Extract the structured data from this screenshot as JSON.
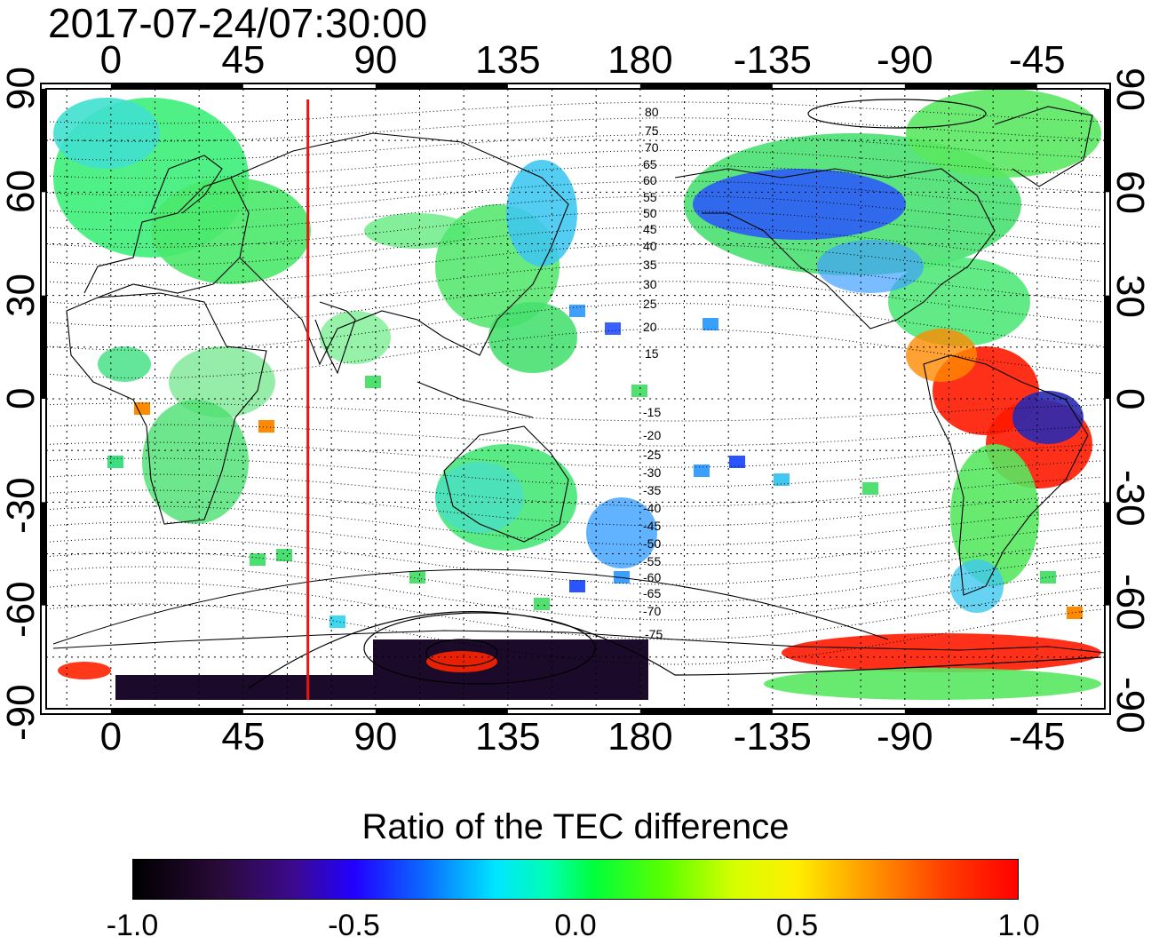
{
  "title": "2017-07-24/07:30:00",
  "x_ticks": [
    "0",
    "45",
    "90",
    "135",
    "180",
    "-135",
    "-90",
    "-45"
  ],
  "y_ticks_left": [
    "90",
    "60",
    "30",
    "0",
    "-30",
    "-60",
    "-90"
  ],
  "y_ticks_right": [
    "90",
    "60",
    "30",
    "0",
    "-30",
    "-60",
    "-90"
  ],
  "mlat_labels": [
    "80",
    "75",
    "70",
    "65",
    "60",
    "55",
    "50",
    "45",
    "40",
    "35",
    "30",
    "25",
    "20",
    "15",
    "-15",
    "-20",
    "-25",
    "-30",
    "-35",
    "-40",
    "-45",
    "-50",
    "-55",
    "-60",
    "-65",
    "-70",
    "-75"
  ],
  "marker_longitude": 67,
  "colorbar": {
    "title": "Ratio of the TEC difference",
    "ticks": [
      "-1.0",
      "-0.5",
      "0.0",
      "0.5",
      "1.0"
    ],
    "range": [
      -1.0,
      1.0
    ],
    "colors": [
      "#000000",
      "#2200ff",
      "#00e6ff",
      "#00ff3c",
      "#ffee00",
      "#ff0000"
    ]
  },
  "map": {
    "lon_range": [
      -22,
      338
    ],
    "lat_range": [
      -90,
      90
    ],
    "grid": "dotted",
    "colors": {
      "marker_line": "#ee1111",
      "coast": "#000000",
      "grid": "#000000"
    }
  }
}
